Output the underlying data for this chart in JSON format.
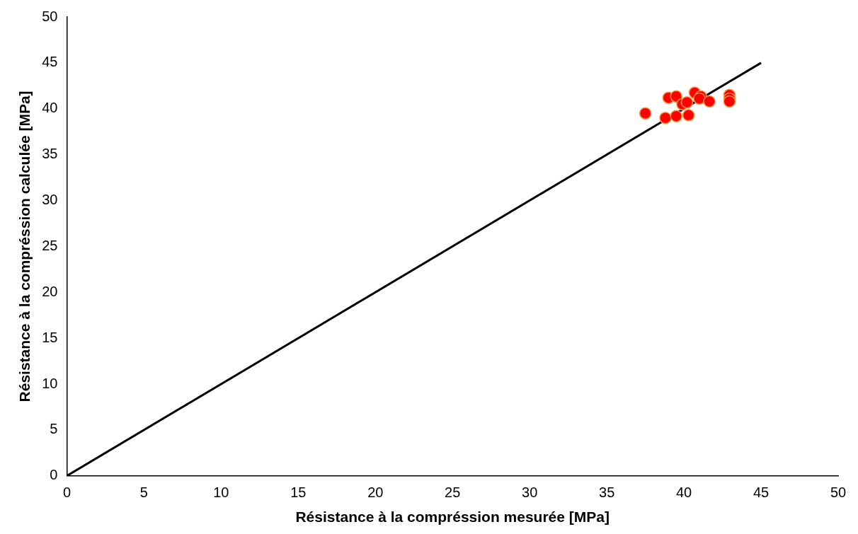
{
  "chart_data": {
    "type": "scatter",
    "xlabel": "Résistance à la compréssion mesurée [MPa]",
    "ylabel": "Résistance à la compréssion calculée [MPa]",
    "xlim": [
      0,
      50
    ],
    "ylim": [
      0,
      50
    ],
    "xticks": [
      0,
      5,
      10,
      15,
      20,
      25,
      30,
      35,
      40,
      45,
      50
    ],
    "yticks": [
      0,
      5,
      10,
      15,
      20,
      25,
      30,
      35,
      40,
      45,
      50
    ],
    "grid": false,
    "legend": false,
    "marker": "circle",
    "series": [
      {
        "type": "line",
        "color": "#000000",
        "x": [
          0,
          45
        ],
        "values": [
          0,
          45
        ],
        "marker": "none"
      },
      {
        "color": "#ff0000",
        "x": [
          37.5,
          38.8,
          39.5,
          40.3,
          39.0,
          39.5,
          39.9,
          40.2,
          40.7,
          41.1,
          41.0,
          41.65,
          42.95,
          42.95,
          42.95
        ],
        "values": [
          39.5,
          39.0,
          39.2,
          39.3,
          41.2,
          41.35,
          40.5,
          40.7,
          41.75,
          41.35,
          41.1,
          40.8,
          41.5,
          41.1,
          40.8
        ]
      }
    ]
  }
}
